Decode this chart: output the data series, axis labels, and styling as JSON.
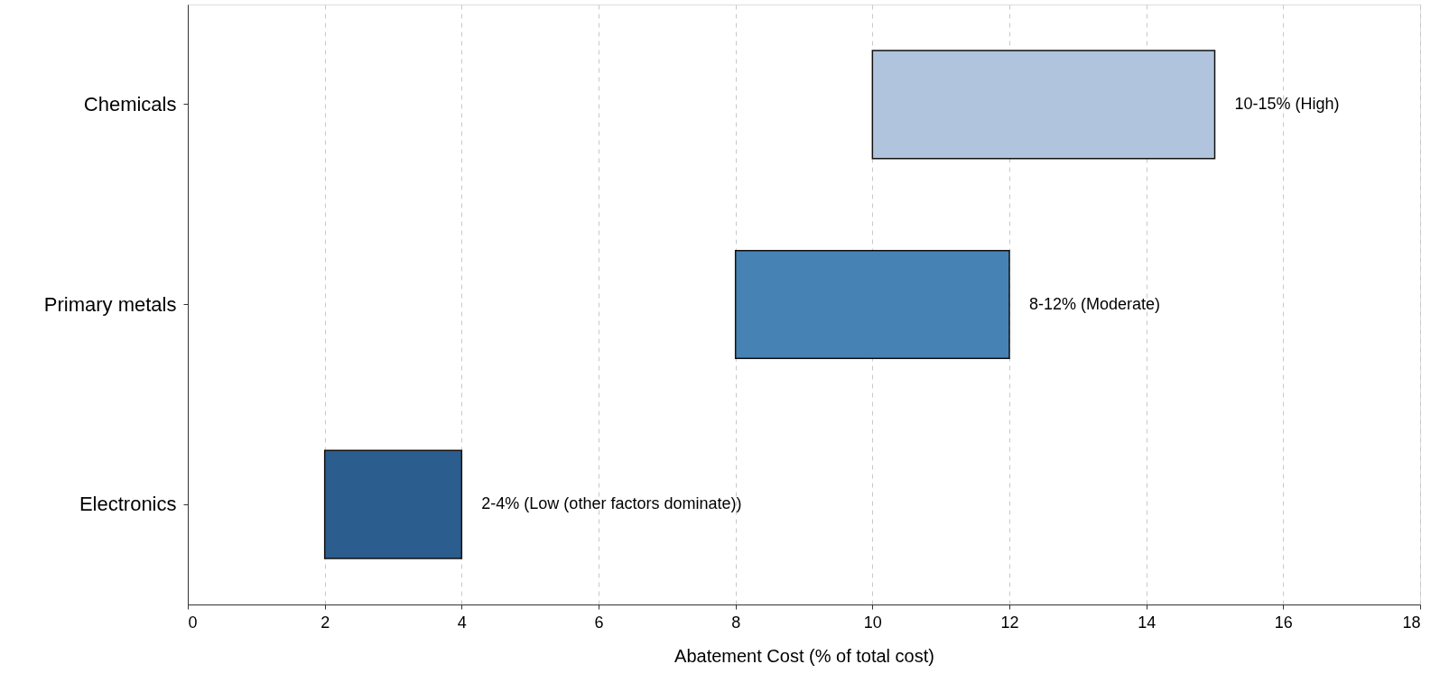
{
  "chart_data": {
    "type": "bar",
    "orientation": "horizontal",
    "xlabel": "Abatement Cost (% of total cost)",
    "categories": [
      "Chemicals",
      "Primary metals",
      "Electronics"
    ],
    "base": [
      10,
      8,
      2
    ],
    "values": [
      5,
      4,
      2
    ],
    "colors": [
      "#b0c4de",
      "#4682b4",
      "#2b5d8e"
    ],
    "annotations": [
      {
        "text": "10-15% (High)",
        "x": 15,
        "y": "Chemicals"
      },
      {
        "text": "8-12% (Moderate)",
        "x": 12,
        "y": "Primary metals"
      },
      {
        "text": "2-4% (Low (other factors dominate))",
        "x": 4,
        "y": "Electronics"
      }
    ],
    "xlim": [
      0,
      18
    ],
    "xticks": [
      0,
      2,
      4,
      6,
      8,
      10,
      12,
      14,
      16,
      18
    ],
    "grid": "x"
  }
}
